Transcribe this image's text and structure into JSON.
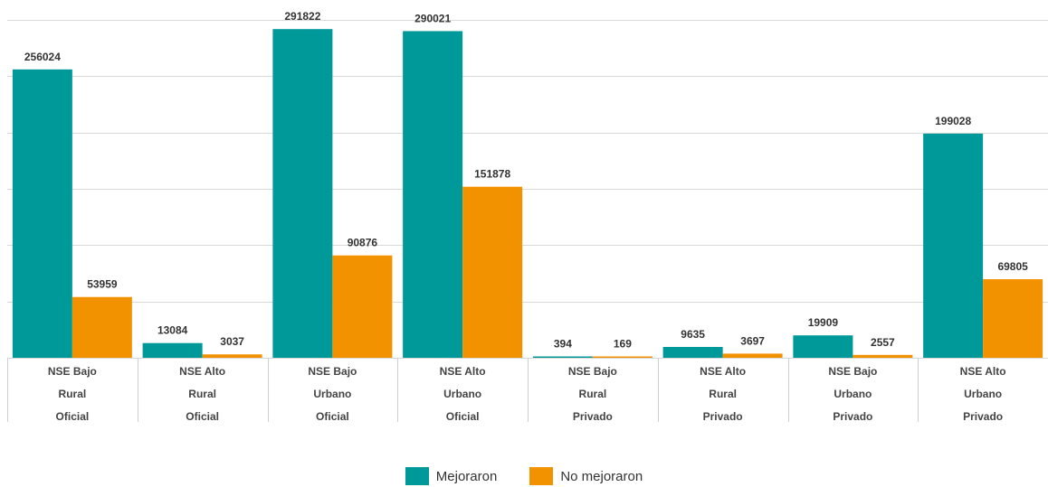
{
  "chart_data": {
    "type": "bar",
    "categories": [
      [
        "NSE Bajo",
        "Rural",
        "Oficial"
      ],
      [
        "NSE Alto",
        "Rural",
        "Oficial"
      ],
      [
        "NSE Bajo",
        "Urbano",
        "Oficial"
      ],
      [
        "NSE Alto",
        "Urbano",
        "Oficial"
      ],
      [
        "NSE Bajo",
        "Rural",
        "Privado"
      ],
      [
        "NSE Alto",
        "Rural",
        "Privado"
      ],
      [
        "NSE Bajo",
        "Urbano",
        "Privado"
      ],
      [
        "NSE Alto",
        "Urbano",
        "Privado"
      ]
    ],
    "series": [
      {
        "name": "Mejoraron",
        "color": "#009999",
        "values": [
          256024,
          13084,
          291822,
          290021,
          394,
          9635,
          19909,
          199028
        ]
      },
      {
        "name": "No mejoraron",
        "color": "#f39200",
        "values": [
          53959,
          3037,
          90876,
          151878,
          169,
          3697,
          2557,
          69805
        ]
      }
    ],
    "ylim": [
      0,
      300000
    ],
    "grid": true,
    "legend_position": "bottom"
  },
  "legend": {
    "items": [
      {
        "label": "Mejoraron",
        "color": "#009999"
      },
      {
        "label": "No mejoraron",
        "color": "#f39200"
      }
    ]
  }
}
